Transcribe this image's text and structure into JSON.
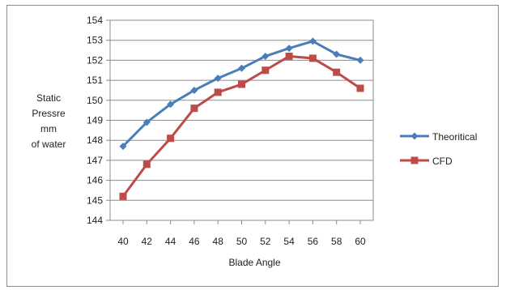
{
  "chart_data": {
    "type": "line",
    "xlabel": "Blade Angle",
    "ylabel_lines": [
      "Static",
      "Pressre",
      "mm",
      "of water"
    ],
    "x": [
      40,
      42,
      44,
      46,
      48,
      50,
      52,
      54,
      56,
      58,
      60
    ],
    "ylim": [
      144,
      154
    ],
    "yticks": [
      144,
      145,
      146,
      147,
      148,
      149,
      150,
      151,
      152,
      153,
      154
    ],
    "grid": "horizontal",
    "legend_position": "right",
    "series": [
      {
        "name": "Theoritical",
        "color": "#4a7ebb",
        "marker": "diamond",
        "values": [
          147.7,
          148.9,
          149.8,
          150.5,
          151.1,
          151.6,
          152.2,
          152.6,
          152.95,
          152.3,
          152.0
        ]
      },
      {
        "name": "CFD",
        "color": "#be4b48",
        "marker": "square",
        "values": [
          145.2,
          146.8,
          148.1,
          149.6,
          150.4,
          150.8,
          151.5,
          152.2,
          152.1,
          151.4,
          150.6
        ]
      }
    ]
  }
}
